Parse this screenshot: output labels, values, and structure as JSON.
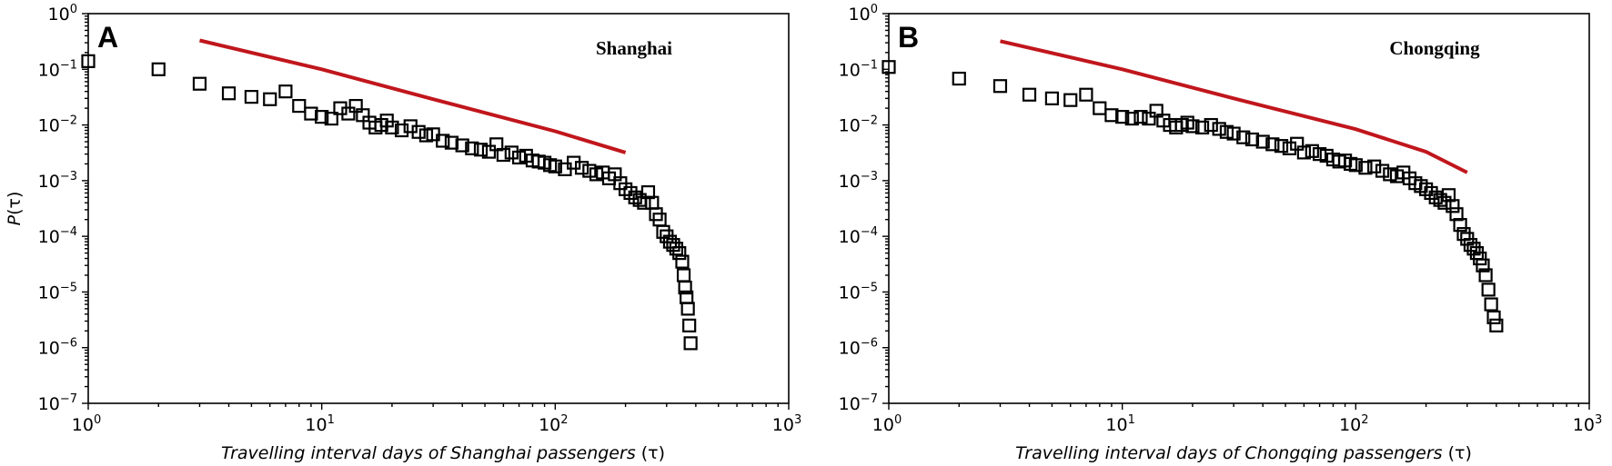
{
  "chart_data": [
    {
      "type": "scatter",
      "panel_label": "A",
      "annotation": "Shanghai",
      "ylabel_prefix": "P",
      "xlabel_main": "Travelling interval days of Shanghai passengers",
      "xlabel_symbol": "(τ)",
      "ylabel_symbol": "(τ)",
      "xscale": "log",
      "yscale": "log",
      "xlim": [
        1,
        1000
      ],
      "ylim": [
        1e-07,
        1
      ],
      "x_ticks": [
        {
          "base": "10",
          "exp": "0"
        },
        {
          "base": "10",
          "exp": "1"
        },
        {
          "base": "10",
          "exp": "2"
        },
        {
          "base": "10",
          "exp": "3"
        }
      ],
      "y_ticks": [
        {
          "base": "10",
          "exp": "0"
        },
        {
          "base": "10",
          "exp": "−1"
        },
        {
          "base": "10",
          "exp": "−2"
        },
        {
          "base": "10",
          "exp": "−3"
        },
        {
          "base": "10",
          "exp": "−4"
        },
        {
          "base": "10",
          "exp": "−5"
        },
        {
          "base": "10",
          "exp": "−6"
        },
        {
          "base": "10",
          "exp": "−7"
        }
      ],
      "grid": false,
      "marker": "open-square",
      "fit_color": "#c0161c",
      "fit_line": {
        "x": [
          3,
          10,
          30,
          100,
          200
        ],
        "y": [
          0.33,
          0.1,
          0.029,
          0.0077,
          0.0032
        ]
      },
      "series": [
        {
          "x": [
            1,
            2,
            3,
            4,
            5,
            6,
            7,
            8,
            9,
            10,
            11,
            12,
            13,
            14,
            15,
            16,
            17,
            18,
            19,
            20,
            22,
            24,
            26,
            28,
            30,
            33,
            36,
            40,
            44,
            48,
            52,
            56,
            60,
            65,
            70,
            75,
            80,
            85,
            90,
            95,
            100,
            110,
            120,
            130,
            140,
            150,
            160,
            170,
            180,
            190,
            200,
            210,
            220,
            230,
            240,
            250,
            260,
            270,
            280,
            290,
            300,
            310,
            320,
            330,
            340,
            350,
            355,
            360,
            365,
            370,
            375,
            380
          ],
          "y": [
            0.14,
            0.1,
            0.055,
            0.037,
            0.032,
            0.029,
            0.04,
            0.022,
            0.016,
            0.014,
            0.013,
            0.02,
            0.016,
            0.022,
            0.015,
            0.011,
            0.009,
            0.01,
            0.012,
            0.009,
            0.008,
            0.0095,
            0.0075,
            0.0065,
            0.0068,
            0.0052,
            0.0048,
            0.0043,
            0.0038,
            0.0036,
            0.0033,
            0.0045,
            0.0029,
            0.0032,
            0.0026,
            0.0028,
            0.0023,
            0.0022,
            0.0021,
            0.0019,
            0.0018,
            0.0016,
            0.0021,
            0.0017,
            0.0015,
            0.0013,
            0.0014,
            0.0011,
            0.0013,
            0.0009,
            0.0007,
            0.0006,
            0.0005,
            0.00045,
            0.0004,
            0.00062,
            0.0004,
            0.00025,
            0.0002,
            0.00012,
            0.0001,
            8e-05,
            7e-05,
            6e-05,
            5e-05,
            3.5e-05,
            2e-05,
            1.2e-05,
            8e-06,
            5e-06,
            2.5e-06,
            1.2e-06
          ]
        }
      ]
    },
    {
      "type": "scatter",
      "panel_label": "B",
      "annotation": "Chongqing",
      "ylabel_prefix": "",
      "xlabel_main": "Travelling interval days of Chongqing passengers",
      "xlabel_symbol": "(τ)",
      "ylabel_symbol": "",
      "xscale": "log",
      "yscale": "log",
      "xlim": [
        1,
        1000
      ],
      "ylim": [
        1e-07,
        1
      ],
      "x_ticks": [
        {
          "base": "10",
          "exp": "0"
        },
        {
          "base": "10",
          "exp": "1"
        },
        {
          "base": "10",
          "exp": "2"
        },
        {
          "base": "10",
          "exp": "3"
        }
      ],
      "y_ticks": [
        {
          "base": "10",
          "exp": "0"
        },
        {
          "base": "10",
          "exp": "−1"
        },
        {
          "base": "10",
          "exp": "−2"
        },
        {
          "base": "10",
          "exp": "−3"
        },
        {
          "base": "10",
          "exp": "−4"
        },
        {
          "base": "10",
          "exp": "−5"
        },
        {
          "base": "10",
          "exp": "−6"
        },
        {
          "base": "10",
          "exp": "−7"
        }
      ],
      "grid": false,
      "marker": "open-square",
      "fit_color": "#c0161c",
      "fit_line": {
        "x": [
          3,
          10,
          30,
          100,
          200,
          300
        ],
        "y": [
          0.32,
          0.1,
          0.03,
          0.0084,
          0.0033,
          0.0014
        ]
      },
      "series": [
        {
          "x": [
            1,
            2,
            3,
            4,
            5,
            6,
            7,
            8,
            9,
            10,
            11,
            12,
            13,
            14,
            15,
            16,
            17,
            18,
            19,
            20,
            22,
            24,
            26,
            28,
            30,
            33,
            36,
            40,
            44,
            48,
            52,
            56,
            60,
            65,
            70,
            75,
            80,
            85,
            90,
            95,
            100,
            110,
            120,
            130,
            140,
            150,
            160,
            170,
            180,
            190,
            200,
            210,
            220,
            230,
            240,
            250,
            260,
            270,
            280,
            290,
            300,
            310,
            320,
            330,
            340,
            350,
            360,
            370,
            380,
            390,
            400
          ],
          "y": [
            0.11,
            0.068,
            0.05,
            0.035,
            0.03,
            0.028,
            0.035,
            0.02,
            0.015,
            0.014,
            0.013,
            0.014,
            0.013,
            0.018,
            0.012,
            0.01,
            0.009,
            0.01,
            0.011,
            0.0095,
            0.009,
            0.01,
            0.0085,
            0.0075,
            0.007,
            0.006,
            0.0055,
            0.005,
            0.0045,
            0.0042,
            0.0038,
            0.0046,
            0.0032,
            0.0034,
            0.003,
            0.0028,
            0.0024,
            0.0022,
            0.0023,
            0.002,
            0.0019,
            0.0017,
            0.0018,
            0.0015,
            0.0013,
            0.0012,
            0.0014,
            0.0011,
            0.0009,
            0.0008,
            0.0007,
            0.0006,
            0.0005,
            0.00045,
            0.0004,
            0.00055,
            0.00035,
            0.00025,
            0.00016,
            0.00011,
            9e-05,
            7e-05,
            6e-05,
            5e-05,
            4e-05,
            3e-05,
            2e-05,
            1.1e-05,
            6e-06,
            3.5e-06,
            2.5e-06
          ]
        }
      ]
    }
  ]
}
